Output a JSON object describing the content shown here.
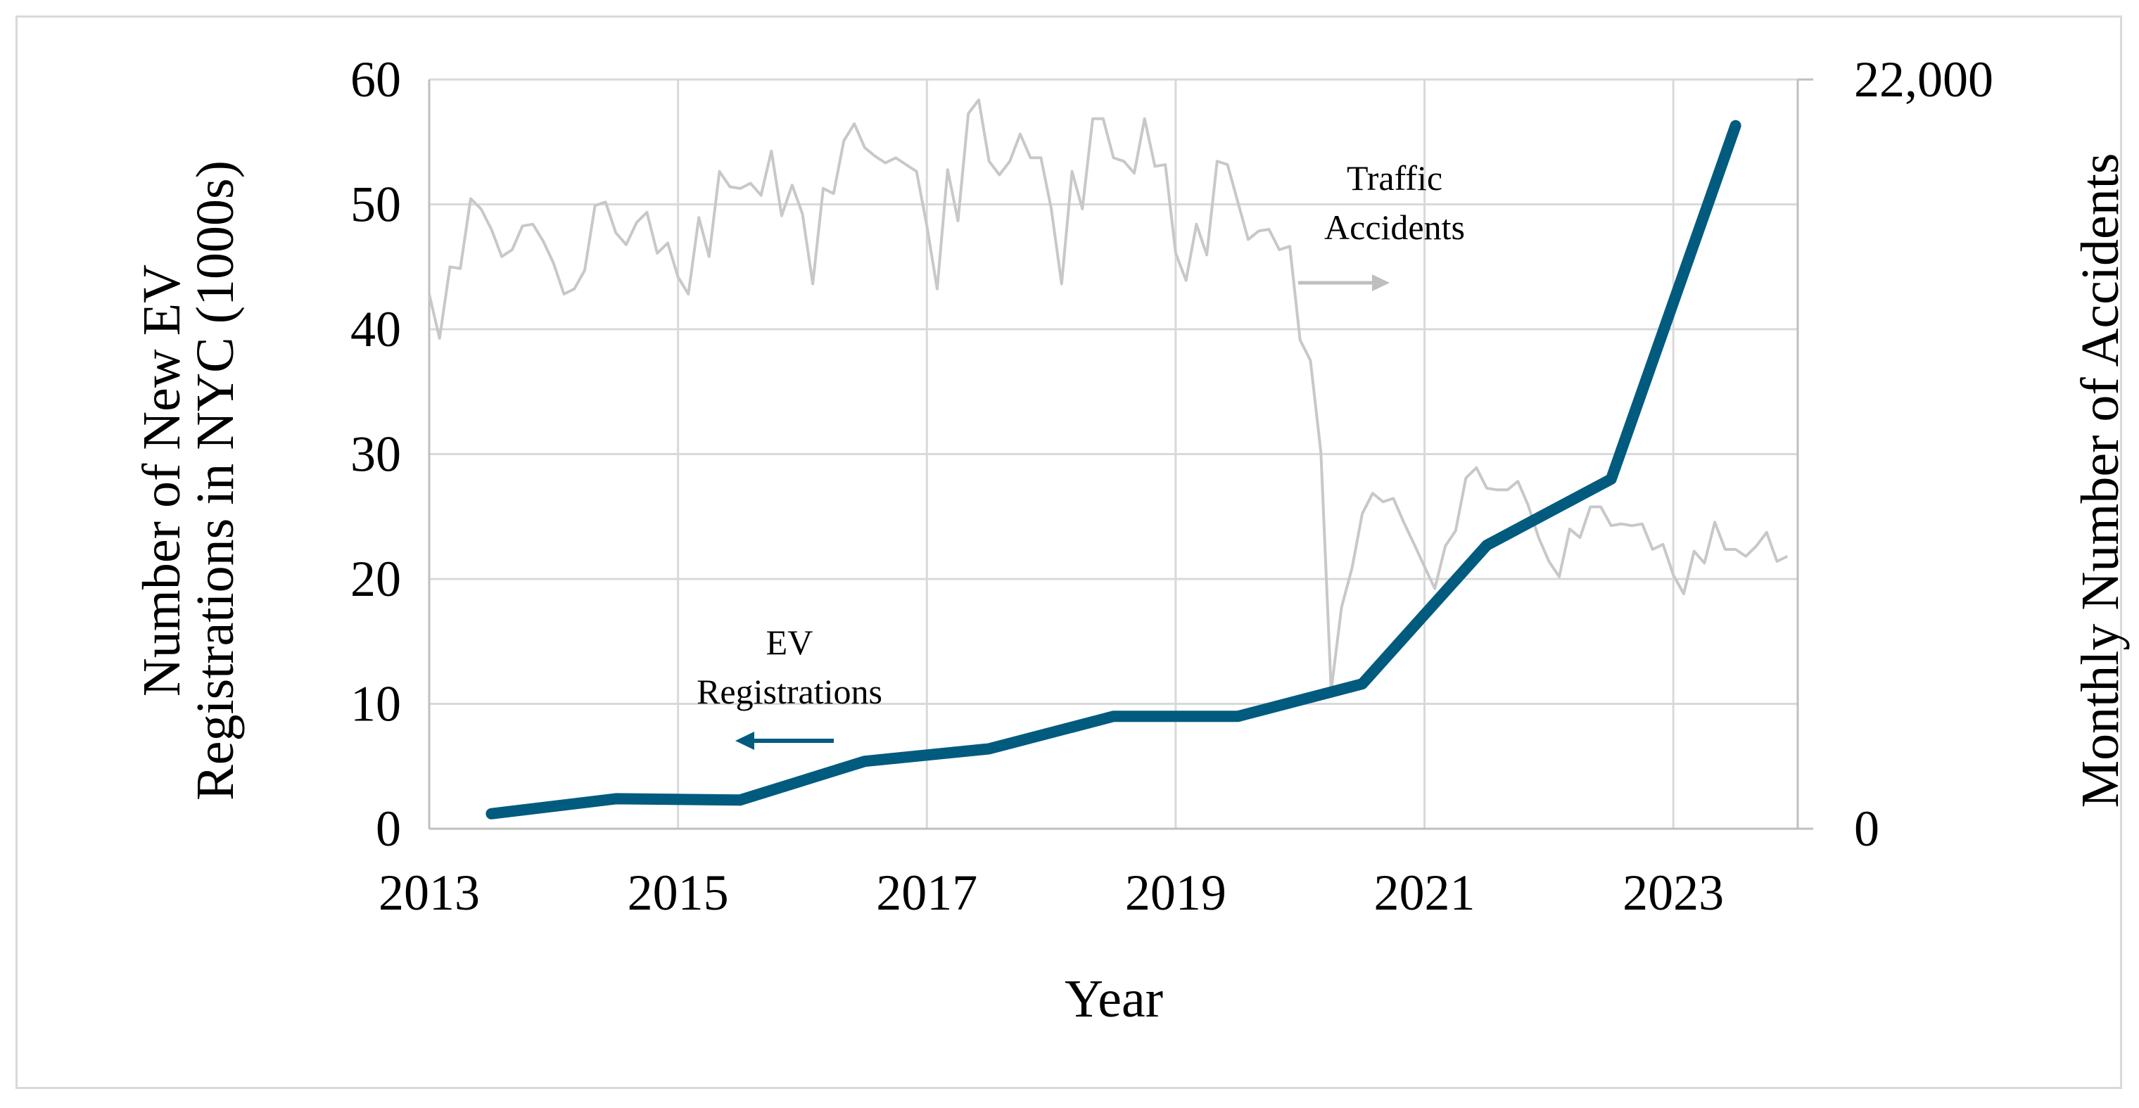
{
  "chart_data": {
    "type": "line",
    "title": "",
    "xlabel": "Year",
    "ylabel": "Number of New EV Registrations in NYC (1000s)",
    "ylabel_lines": [
      "Number of New EV",
      "Registrations in NYC (1000s)"
    ],
    "y2label": "Monthly Number of Accidents",
    "xlim": [
      2013,
      2024
    ],
    "x_tick_values": [
      2013,
      2015,
      2017,
      2019,
      2021,
      2023
    ],
    "x_tick_labels": [
      "2013",
      "2015",
      "2017",
      "2019",
      "2021",
      "2023"
    ],
    "ylim": [
      0,
      60
    ],
    "y_tick_values": [
      0,
      10,
      20,
      30,
      40,
      50,
      60
    ],
    "y_tick_labels": [
      "0",
      "10",
      "20",
      "30",
      "40",
      "50",
      "60"
    ],
    "y2lim": [
      0,
      22000
    ],
    "y2_tick_values": [
      0,
      22000
    ],
    "y2_tick_labels": [
      "0",
      "22,000"
    ],
    "grid": true,
    "colors": {
      "ev": "#005b7f",
      "accidents": "#c8c8c8",
      "grid": "#d9d9d9",
      "axis": "#bfbfbf",
      "annotation_arrow": "#bfbfbf"
    },
    "annotations": {
      "accidents_lines": [
        "Traffic",
        "Accidents"
      ],
      "ev_lines": [
        "EV",
        "Registrations"
      ]
    },
    "series": [
      {
        "name": "EV Registrations",
        "axis": "left",
        "x": [
          2013.5,
          2014.5,
          2015.5,
          2016.5,
          2017.5,
          2018.5,
          2019.5,
          2020.5,
          2021.5,
          2022.5,
          2023.5
        ],
        "values": [
          1.2,
          2.4,
          2.3,
          5.4,
          6.4,
          9.0,
          9.0,
          11.6,
          22.7,
          28.0,
          56.3
        ]
      },
      {
        "name": "Traffic Accidents",
        "axis": "right",
        "x": [
          2013.0,
          2013.083,
          2013.167,
          2013.25,
          2013.333,
          2013.417,
          2013.5,
          2013.583,
          2013.667,
          2013.75,
          2013.833,
          2013.917,
          2014.0,
          2014.083,
          2014.167,
          2014.25,
          2014.333,
          2014.417,
          2014.5,
          2014.583,
          2014.667,
          2014.75,
          2014.833,
          2014.917,
          2015.0,
          2015.083,
          2015.167,
          2015.25,
          2015.333,
          2015.417,
          2015.5,
          2015.583,
          2015.667,
          2015.75,
          2015.833,
          2015.917,
          2016.0,
          2016.083,
          2016.167,
          2016.25,
          2016.333,
          2016.417,
          2016.5,
          2016.583,
          2016.667,
          2016.75,
          2016.833,
          2016.917,
          2017.0,
          2017.083,
          2017.167,
          2017.25,
          2017.333,
          2017.417,
          2017.5,
          2017.583,
          2017.667,
          2017.75,
          2017.833,
          2017.917,
          2018.0,
          2018.083,
          2018.167,
          2018.25,
          2018.333,
          2018.417,
          2018.5,
          2018.583,
          2018.667,
          2018.75,
          2018.833,
          2018.917,
          2019.0,
          2019.083,
          2019.167,
          2019.25,
          2019.333,
          2019.417,
          2019.5,
          2019.583,
          2019.667,
          2019.75,
          2019.833,
          2019.917,
          2020.0,
          2020.083,
          2020.167,
          2020.25,
          2020.333,
          2020.417,
          2020.5,
          2020.583,
          2020.667,
          2020.75,
          2020.833,
          2020.917,
          2021.0,
          2021.083,
          2021.167,
          2021.25,
          2021.333,
          2021.417,
          2021.5,
          2021.583,
          2021.667,
          2021.75,
          2021.833,
          2021.917,
          2022.0,
          2022.083,
          2022.167,
          2022.25,
          2022.333,
          2022.417,
          2022.5,
          2022.583,
          2022.667,
          2022.75,
          2022.833,
          2022.917,
          2023.0,
          2023.083,
          2023.167,
          2023.25,
          2023.333,
          2023.417,
          2023.5,
          2023.583,
          2023.667,
          2023.75,
          2023.833,
          2023.917
        ],
        "values": [
          15700,
          14400,
          16500,
          16450,
          18500,
          18200,
          17600,
          16800,
          17000,
          17700,
          17750,
          17250,
          16600,
          15700,
          15850,
          16400,
          18300,
          18400,
          17500,
          17150,
          17800,
          18100,
          16900,
          17200,
          16200,
          15700,
          17950,
          16800,
          19300,
          18850,
          18800,
          18950,
          18600,
          19900,
          18000,
          18900,
          18050,
          16000,
          18800,
          18650,
          20200,
          20700,
          20000,
          19750,
          19550,
          19700,
          19500,
          19300,
          17700,
          15850,
          19350,
          17850,
          21000,
          21400,
          19600,
          19200,
          19600,
          20400,
          19700,
          19700,
          18200,
          16000,
          19300,
          18200,
          20850,
          20850,
          19700,
          19600,
          19250,
          20850,
          19450,
          19500,
          16900,
          16100,
          17750,
          16850,
          19600,
          19500,
          18400,
          17300,
          17550,
          17600,
          17000,
          17100,
          14350,
          13750,
          11050,
          4050,
          6500,
          7650,
          9250,
          9850,
          9600,
          9700,
          9000,
          8350,
          7700,
          7050,
          8300,
          8750,
          10300,
          10600,
          10000,
          9950,
          9950,
          10200,
          9500,
          8550,
          7850,
          7400,
          8800,
          8550,
          9450,
          9450,
          8900,
          8950,
          8900,
          8950,
          8200,
          8350,
          7450,
          6900,
          8150,
          7800,
          9000,
          8200,
          8200,
          8000,
          8300,
          8700,
          7850,
          8000
        ]
      }
    ]
  }
}
